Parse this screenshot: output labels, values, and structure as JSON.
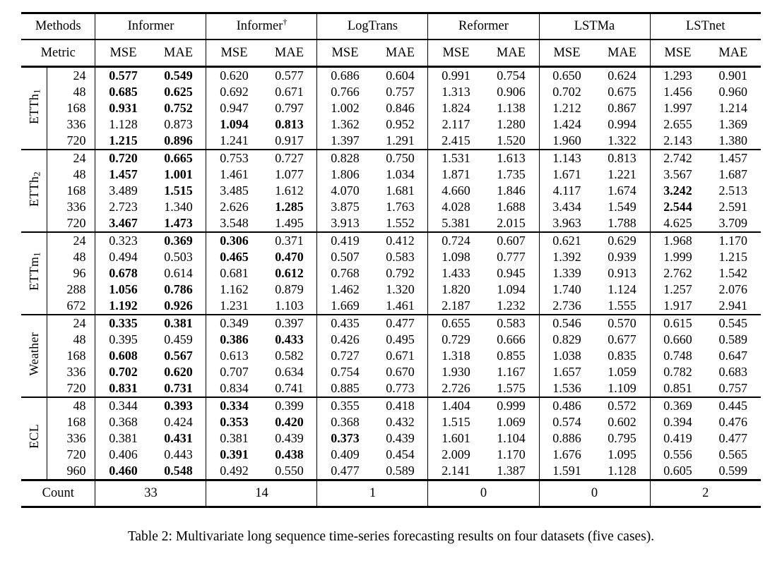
{
  "table": {
    "methods_header_label": "Methods",
    "metric_header_label": "Metric",
    "metric_labels": [
      "MSE",
      "MAE"
    ],
    "methods": [
      {
        "name": "Informer",
        "sup": ""
      },
      {
        "name": "Informer",
        "sup": "†"
      },
      {
        "name": "LogTrans",
        "sup": ""
      },
      {
        "name": "Reformer",
        "sup": ""
      },
      {
        "name": "LSTMa",
        "sup": ""
      },
      {
        "name": "LSTnet",
        "sup": ""
      }
    ],
    "groups": [
      {
        "dataset": "ETTh",
        "dataset_sub": "1",
        "rows": [
          {
            "horizon": "24",
            "values": [
              "0.577",
              "0.549",
              "0.620",
              "0.577",
              "0.686",
              "0.604",
              "0.991",
              "0.754",
              "0.650",
              "0.624",
              "1.293",
              "0.901"
            ],
            "bold": [
              0,
              1
            ]
          },
          {
            "horizon": "48",
            "values": [
              "0.685",
              "0.625",
              "0.692",
              "0.671",
              "0.766",
              "0.757",
              "1.313",
              "0.906",
              "0.702",
              "0.675",
              "1.456",
              "0.960"
            ],
            "bold": [
              0,
              1
            ]
          },
          {
            "horizon": "168",
            "values": [
              "0.931",
              "0.752",
              "0.947",
              "0.797",
              "1.002",
              "0.846",
              "1.824",
              "1.138",
              "1.212",
              "0.867",
              "1.997",
              "1.214"
            ],
            "bold": [
              0,
              1
            ]
          },
          {
            "horizon": "336",
            "values": [
              "1.128",
              "0.873",
              "1.094",
              "0.813",
              "1.362",
              "0.952",
              "2.117",
              "1.280",
              "1.424",
              "0.994",
              "2.655",
              "1.369"
            ],
            "bold": [
              2,
              3
            ]
          },
          {
            "horizon": "720",
            "values": [
              "1.215",
              "0.896",
              "1.241",
              "0.917",
              "1.397",
              "1.291",
              "2.415",
              "1.520",
              "1.960",
              "1.322",
              "2.143",
              "1.380"
            ],
            "bold": [
              0,
              1
            ]
          }
        ]
      },
      {
        "dataset": "ETTh",
        "dataset_sub": "2",
        "rows": [
          {
            "horizon": "24",
            "values": [
              "0.720",
              "0.665",
              "0.753",
              "0.727",
              "0.828",
              "0.750",
              "1.531",
              "1.613",
              "1.143",
              "0.813",
              "2.742",
              "1.457"
            ],
            "bold": [
              0,
              1
            ]
          },
          {
            "horizon": "48",
            "values": [
              "1.457",
              "1.001",
              "1.461",
              "1.077",
              "1.806",
              "1.034",
              "1.871",
              "1.735",
              "1.671",
              "1.221",
              "3.567",
              "1.687"
            ],
            "bold": [
              0,
              1
            ]
          },
          {
            "horizon": "168",
            "values": [
              "3.489",
              "1.515",
              "3.485",
              "1.612",
              "4.070",
              "1.681",
              "4.660",
              "1.846",
              "4.117",
              "1.674",
              "3.242",
              "2.513"
            ],
            "bold": [
              1,
              10
            ]
          },
          {
            "horizon": "336",
            "values": [
              "2.723",
              "1.340",
              "2.626",
              "1.285",
              "3.875",
              "1.763",
              "4.028",
              "1.688",
              "3.434",
              "1.549",
              "2.544",
              "2.591"
            ],
            "bold": [
              3,
              10
            ]
          },
          {
            "horizon": "720",
            "values": [
              "3.467",
              "1.473",
              "3.548",
              "1.495",
              "3.913",
              "1.552",
              "5.381",
              "2.015",
              "3.963",
              "1.788",
              "4.625",
              "3.709"
            ],
            "bold": [
              0,
              1
            ]
          }
        ]
      },
      {
        "dataset": "ETTm",
        "dataset_sub": "1",
        "rows": [
          {
            "horizon": "24",
            "values": [
              "0.323",
              "0.369",
              "0.306",
              "0.371",
              "0.419",
              "0.412",
              "0.724",
              "0.607",
              "0.621",
              "0.629",
              "1.968",
              "1.170"
            ],
            "bold": [
              1,
              2
            ]
          },
          {
            "horizon": "48",
            "values": [
              "0.494",
              "0.503",
              "0.465",
              "0.470",
              "0.507",
              "0.583",
              "1.098",
              "0.777",
              "1.392",
              "0.939",
              "1.999",
              "1.215"
            ],
            "bold": [
              2,
              3
            ]
          },
          {
            "horizon": "96",
            "values": [
              "0.678",
              "0.614",
              "0.681",
              "0.612",
              "0.768",
              "0.792",
              "1.433",
              "0.945",
              "1.339",
              "0.913",
              "2.762",
              "1.542"
            ],
            "bold": [
              0,
              3
            ]
          },
          {
            "horizon": "288",
            "values": [
              "1.056",
              "0.786",
              "1.162",
              "0.879",
              "1.462",
              "1.320",
              "1.820",
              "1.094",
              "1.740",
              "1.124",
              "1.257",
              "2.076"
            ],
            "bold": [
              0,
              1
            ]
          },
          {
            "horizon": "672",
            "values": [
              "1.192",
              "0.926",
              "1.231",
              "1.103",
              "1.669",
              "1.461",
              "2.187",
              "1.232",
              "2.736",
              "1.555",
              "1.917",
              "2.941"
            ],
            "bold": [
              0,
              1
            ]
          }
        ]
      },
      {
        "dataset": "Weather",
        "dataset_sub": "",
        "rows": [
          {
            "horizon": "24",
            "values": [
              "0.335",
              "0.381",
              "0.349",
              "0.397",
              "0.435",
              "0.477",
              "0.655",
              "0.583",
              "0.546",
              "0.570",
              "0.615",
              "0.545"
            ],
            "bold": [
              0,
              1
            ]
          },
          {
            "horizon": "48",
            "values": [
              "0.395",
              "0.459",
              "0.386",
              "0.433",
              "0.426",
              "0.495",
              "0.729",
              "0.666",
              "0.829",
              "0.677",
              "0.660",
              "0.589"
            ],
            "bold": [
              2,
              3
            ]
          },
          {
            "horizon": "168",
            "values": [
              "0.608",
              "0.567",
              "0.613",
              "0.582",
              "0.727",
              "0.671",
              "1.318",
              "0.855",
              "1.038",
              "0.835",
              "0.748",
              "0.647"
            ],
            "bold": [
              0,
              1
            ]
          },
          {
            "horizon": "336",
            "values": [
              "0.702",
              "0.620",
              "0.707",
              "0.634",
              "0.754",
              "0.670",
              "1.930",
              "1.167",
              "1.657",
              "1.059",
              "0.782",
              "0.683"
            ],
            "bold": [
              0,
              1
            ]
          },
          {
            "horizon": "720",
            "values": [
              "0.831",
              "0.731",
              "0.834",
              "0.741",
              "0.885",
              "0.773",
              "2.726",
              "1.575",
              "1.536",
              "1.109",
              "0.851",
              "0.757"
            ],
            "bold": [
              0,
              1
            ]
          }
        ]
      },
      {
        "dataset": "ECL",
        "dataset_sub": "",
        "rows": [
          {
            "horizon": "48",
            "values": [
              "0.344",
              "0.393",
              "0.334",
              "0.399",
              "0.355",
              "0.418",
              "1.404",
              "0.999",
              "0.486",
              "0.572",
              "0.369",
              "0.445"
            ],
            "bold": [
              1,
              2
            ]
          },
          {
            "horizon": "168",
            "values": [
              "0.368",
              "0.424",
              "0.353",
              "0.420",
              "0.368",
              "0.432",
              "1.515",
              "1.069",
              "0.574",
              "0.602",
              "0.394",
              "0.476"
            ],
            "bold": [
              2,
              3
            ]
          },
          {
            "horizon": "336",
            "values": [
              "0.381",
              "0.431",
              "0.381",
              "0.439",
              "0.373",
              "0.439",
              "1.601",
              "1.104",
              "0.886",
              "0.795",
              "0.419",
              "0.477"
            ],
            "bold": [
              1,
              4
            ]
          },
          {
            "horizon": "720",
            "values": [
              "0.406",
              "0.443",
              "0.391",
              "0.438",
              "0.409",
              "0.454",
              "2.009",
              "1.170",
              "1.676",
              "1.095",
              "0.556",
              "0.565"
            ],
            "bold": [
              2,
              3
            ]
          },
          {
            "horizon": "960",
            "values": [
              "0.460",
              "0.548",
              "0.492",
              "0.550",
              "0.477",
              "0.589",
              "2.141",
              "1.387",
              "1.591",
              "1.128",
              "0.605",
              "0.599"
            ],
            "bold": [
              0,
              1
            ]
          }
        ]
      }
    ],
    "count_label": "Count",
    "counts": [
      "33",
      "14",
      "1",
      "0",
      "0",
      "2"
    ]
  },
  "caption": "Table 2: Multivariate long sequence time-series forecasting results on four datasets (five cases)."
}
